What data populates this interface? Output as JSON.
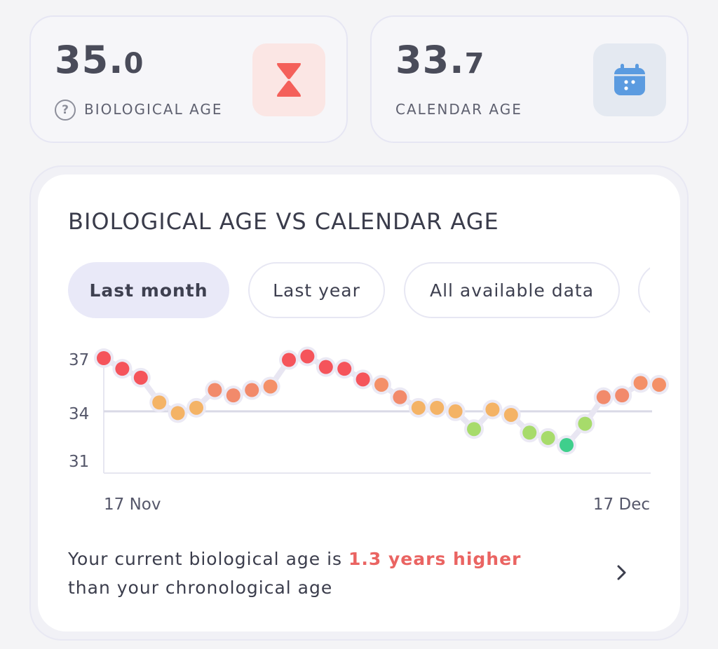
{
  "biological": {
    "value_int": "35.",
    "value_dec": "0",
    "label": "BIOLOGICAL AGE",
    "help_icon": "question-circle-icon",
    "icon": "hourglass-icon",
    "icon_color": "#f4605a"
  },
  "calendar": {
    "value_int": "33.",
    "value_dec": "7",
    "label": "CALENDAR AGE",
    "icon": "calendar-icon",
    "icon_color": "#5b9be0"
  },
  "chart_card": {
    "title": "BIOLOGICAL AGE VS CALENDAR AGE",
    "filters": [
      {
        "label": "Last month",
        "active": true
      },
      {
        "label": "Last year",
        "active": false
      },
      {
        "label": "All available data",
        "active": false
      },
      {
        "label": "",
        "active": false
      }
    ],
    "summary_prefix": "Your current biological age is ",
    "summary_highlight": "1.3 years higher",
    "summary_suffix": "than your chronological age",
    "chevron_icon": "chevron-right-icon"
  },
  "chart_data": {
    "type": "scatter",
    "title": "",
    "xlabel": "",
    "ylabel": "",
    "x_tick_labels": [
      "17 Nov",
      "17 Dec"
    ],
    "y_ticks": [
      37,
      34,
      31
    ],
    "ylim": [
      30.3,
      37.7
    ],
    "reference_line": 34,
    "grid": false,
    "series": [
      {
        "values": [
          37,
          36.4,
          35.9,
          34.5,
          33.9,
          34.2,
          35.2,
          34.9,
          35.2,
          35.4,
          36.9,
          37.1,
          36.5,
          36.4,
          35.8,
          35.5,
          34.8,
          34.2,
          34.2,
          34.0,
          33.0,
          34.1,
          33.8,
          32.8,
          32.5,
          32.1,
          33.3,
          34.8,
          34.9,
          35.6,
          35.5
        ]
      }
    ],
    "color_scale": {
      "high": "#f5545b",
      "mid": "#f4b366",
      "low": "#a7db6b",
      "lowest": "#3fcf8c"
    }
  }
}
